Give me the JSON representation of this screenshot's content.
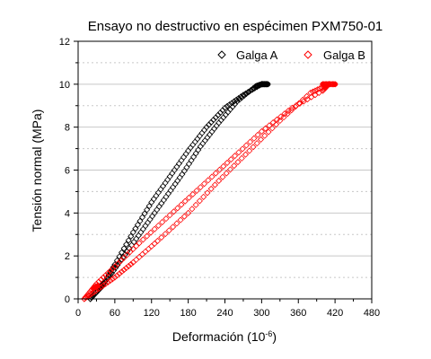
{
  "chart_data": {
    "type": "scatter",
    "title": "Ensayo no destructivo en espécimen PXM750-01",
    "xlabel": "Deformación (10",
    "xlabel_sup": "-6",
    "xlabel_end": ")",
    "ylabel": "Tensión normal (MPa)",
    "xlim": [
      0,
      480
    ],
    "ylim": [
      0,
      12
    ],
    "xticks": [
      0,
      60,
      120,
      180,
      240,
      300,
      360,
      420,
      480
    ],
    "yticks": [
      0,
      2,
      4,
      6,
      8,
      10,
      12
    ],
    "grid": {
      "horizontal_major": true,
      "horizontal_minor_dashed": true,
      "vertical": false
    },
    "legend_position": "top-right",
    "series": [
      {
        "name": "Galga A",
        "color": "#000000",
        "marker": "diamond-open",
        "loading": [
          [
            20,
            0.0
          ],
          [
            40,
            0.6
          ],
          [
            60,
            1.6
          ],
          [
            90,
            3.1
          ],
          [
            120,
            4.5
          ],
          [
            150,
            5.7
          ],
          [
            180,
            6.9
          ],
          [
            210,
            8.0
          ],
          [
            240,
            8.9
          ],
          [
            270,
            9.5
          ],
          [
            300,
            10.0
          ]
        ],
        "unloading": [
          [
            300,
            10.0
          ],
          [
            290,
            9.9
          ],
          [
            260,
            9.2
          ],
          [
            230,
            8.2
          ],
          [
            200,
            7.1
          ],
          [
            170,
            5.8
          ],
          [
            140,
            4.6
          ],
          [
            110,
            3.4
          ],
          [
            80,
            2.2
          ],
          [
            55,
            1.2
          ],
          [
            35,
            0.5
          ],
          [
            20,
            0.0
          ]
        ],
        "hold": [
          [
            300,
            10.0
          ],
          [
            310,
            10.0
          ]
        ],
        "start_cluster": [
          [
            32,
            0.5
          ],
          [
            40,
            0.6
          ]
        ]
      },
      {
        "name": "Galga B",
        "color": "#ff0000",
        "marker": "diamond-open",
        "loading": [
          [
            10,
            0.0
          ],
          [
            30,
            0.7
          ],
          [
            60,
            1.5
          ],
          [
            100,
            2.6
          ],
          [
            150,
            3.9
          ],
          [
            200,
            5.2
          ],
          [
            250,
            6.5
          ],
          [
            300,
            7.8
          ],
          [
            350,
            8.9
          ],
          [
            400,
            9.7
          ],
          [
            410,
            10.0
          ]
        ],
        "unloading": [
          [
            410,
            10.0
          ],
          [
            380,
            9.6
          ],
          [
            330,
            8.3
          ],
          [
            280,
            6.9
          ],
          [
            230,
            5.5
          ],
          [
            180,
            4.0
          ],
          [
            130,
            2.7
          ],
          [
            90,
            1.7
          ],
          [
            60,
            1.0
          ],
          [
            30,
            0.4
          ],
          [
            10,
            0.0
          ]
        ],
        "hold": [
          [
            400,
            10.0
          ],
          [
            420,
            10.0
          ]
        ],
        "start_cluster": [
          [
            25,
            0.5
          ],
          [
            32,
            0.6
          ]
        ]
      }
    ]
  }
}
